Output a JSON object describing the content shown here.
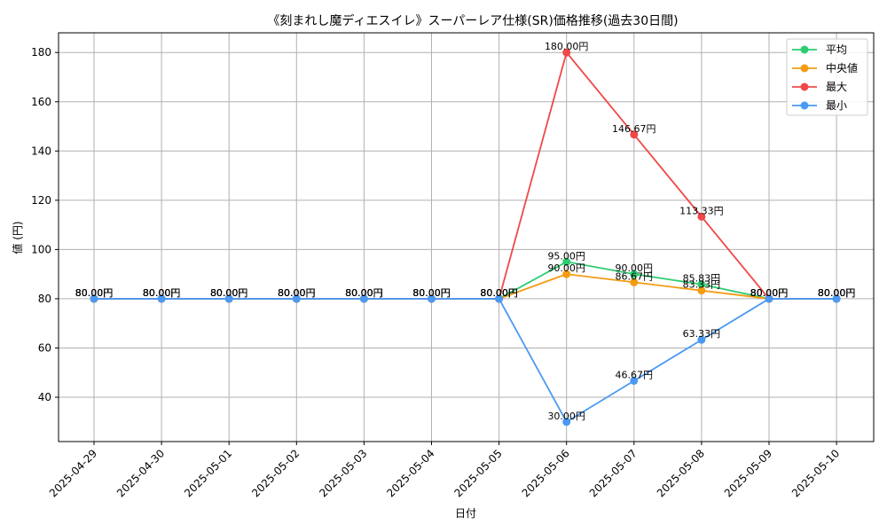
{
  "chart_data": {
    "type": "line",
    "title": "《刻まれし魔ディエスイレ》スーパーレア仕様(SR)価格推移(過去30日間)",
    "xlabel": "日付",
    "ylabel": "値 (円)",
    "ylim": [
      22,
      188
    ],
    "yticks": [
      40,
      60,
      80,
      100,
      120,
      140,
      160,
      180
    ],
    "grid": true,
    "legend_position": "top-right",
    "value_suffix": "円",
    "categories": [
      "2025-04-29",
      "2025-04-30",
      "2025-05-01",
      "2025-05-02",
      "2025-05-03",
      "2025-05-04",
      "2025-05-05",
      "2025-05-06",
      "2025-05-07",
      "2025-05-08",
      "2025-05-09",
      "2025-05-10"
    ],
    "series": [
      {
        "name": "平均",
        "color": "#2ecc71",
        "values": [
          80,
          80,
          80,
          80,
          80,
          80,
          80,
          95,
          90,
          85.83,
          80,
          80
        ],
        "labels": [
          "80.00円",
          "80.00円",
          "80.00円",
          "80.00円",
          "80.00円",
          "80.00円",
          "80.00円",
          "95.00円",
          "90.00円",
          "85.83円",
          "80.00円",
          "80.00円"
        ]
      },
      {
        "name": "中央値",
        "color": "#f39c12",
        "values": [
          80,
          80,
          80,
          80,
          80,
          80,
          80,
          90,
          86.67,
          83.33,
          80,
          80
        ],
        "labels": [
          "80.00円",
          "80.00円",
          "80.00円",
          "80.00円",
          "80.00円",
          "80.00円",
          "80.00円",
          "90.00円",
          "86.67円",
          "83.33円",
          "80.00円",
          "80.00円"
        ]
      },
      {
        "name": "最大",
        "color": "#f04848",
        "values": [
          80,
          80,
          80,
          80,
          80,
          80,
          80,
          180,
          146.67,
          113.33,
          80,
          80
        ],
        "labels": [
          "80.00円",
          "80.00円",
          "80.00円",
          "80.00円",
          "80.00円",
          "80.00円",
          "80.00円",
          "180.00円",
          "146.67円",
          "113.33円",
          "80.00円",
          "80.00円"
        ]
      },
      {
        "name": "最小",
        "color": "#4a9af4",
        "values": [
          80,
          80,
          80,
          80,
          80,
          80,
          80,
          30,
          46.67,
          63.33,
          80,
          80
        ],
        "labels": [
          "80.00円",
          "80.00円",
          "80.00円",
          "80.00円",
          "80.00円",
          "80.00円",
          "80.00円",
          "30.00円",
          "46.67円",
          "63.33円",
          "80.00円",
          "80.00円"
        ]
      }
    ]
  }
}
